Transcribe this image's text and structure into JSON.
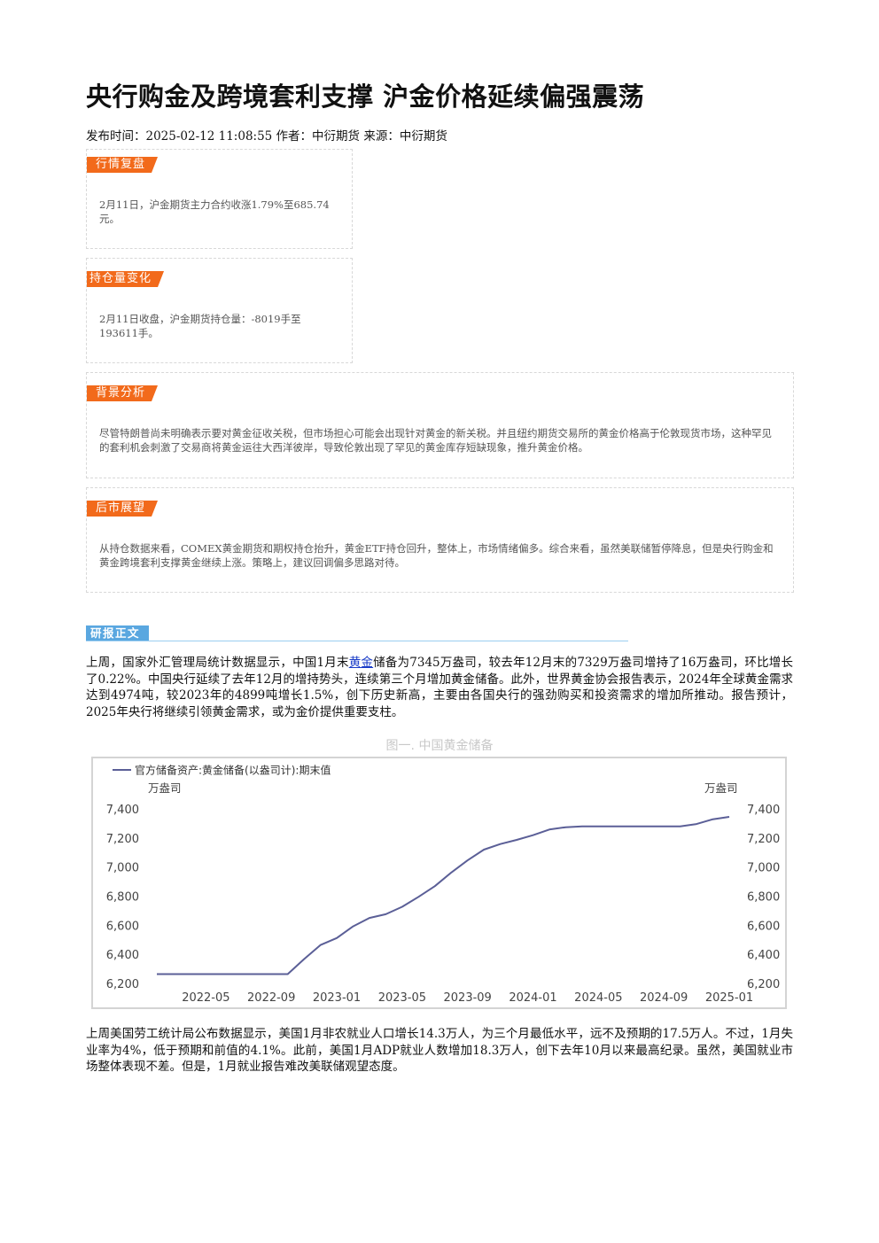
{
  "article": {
    "title": "央行购金及跨境套利支撑 沪金价格延续偏强震荡",
    "meta": "发布时间：2025-02-12 11:08:55 作者：中衍期货 来源：中衍期货"
  },
  "sections": {
    "market_review": {
      "label": "行情复盘",
      "text": "2月11日，沪金期货主力合约收涨1.79%至685.74元。"
    },
    "position_change": {
      "label": "持仓量变化",
      "text": "2月11日收盘，沪金期货持仓量：-8019手至193611手。"
    },
    "background": {
      "label": "背景分析",
      "text": "尽管特朗普尚未明确表示要对黄金征收关税，但市场担心可能会出现针对黄金的新关税。并且纽约期货交易所的黄金价格高于伦敦现货市场，这种罕见的套利机会刺激了交易商将黄金运往大西洋彼岸，导致伦敦出现了罕见的黄金库存短缺现象，推升黄金价格。"
    },
    "outlook": {
      "label": "后市展望",
      "text": "从持仓数据来看，COMEX黄金期货和期权持仓抬升，黄金ETF持仓回升，整体上，市场情绪偏多。综合来看，虽然美联储暂停降息，但是央行购金和黄金跨境套利支撑黄金继续上涨。策略上，建议回调偏多思路对待。"
    }
  },
  "report": {
    "label": "研报正文",
    "para1_a": "上周，国家外汇管理局统计数据显示，中国1月末",
    "para1_link": "黄金",
    "para1_b": "储备为7345万盎司，较去年12月末的7329万盎司增持了16万盎司，环比增长了0.22%。中国央行延续了去年12月的增持势头，连续第三个月增加黄金储备。此外，世界黄金协会报告表示，2024年全球黄金需求达到4974吨，较2023年的4899吨增长1.5%，创下历史新高，主要由各国央行的强劲购买和投资需求的增加所推动。报告预计，2025年央行将继续引领黄金需求，或为金价提供重要支柱。",
    "figure_caption": "图一. 中国黄金储备",
    "para2": "上周美国劳工统计局公布数据显示，美国1月非农就业人口增长14.3万人，为三个月最低水平，远不及预期的17.5万人。不过，1月失业率为4%，低于预期和前值的4.1%。此前，美国1月ADP就业人数增加18.3万人，创下去年10月以来最高纪录。虽然，美国就业市场整体表现不差。但是，1月就业报告难改美联储观望态度。"
  },
  "chart_data": {
    "type": "line",
    "title": "",
    "legend": "官方储备资产:黄金储备(以盎司计):期末值",
    "legend_position": "top-left",
    "ylabel_left": "万盎司",
    "ylabel_right": "万盎司",
    "ylim": [
      6200,
      7400
    ],
    "yticks": [
      "7,400",
      "7,200",
      "7,000",
      "6,800",
      "6,600",
      "6,400",
      "6,200"
    ],
    "xticks": [
      "2022-05",
      "2022-09",
      "2023-01",
      "2023-05",
      "2023-09",
      "2024-01",
      "2024-05",
      "2024-09",
      "2025-01"
    ],
    "color": "#5b5f97",
    "series": [
      {
        "name": "官方储备资产:黄金储备(以盎司计):期末值",
        "x": [
          "2022-02",
          "2022-03",
          "2022-04",
          "2022-05",
          "2022-06",
          "2022-07",
          "2022-08",
          "2022-09",
          "2022-10",
          "2022-11",
          "2022-12",
          "2023-01",
          "2023-02",
          "2023-03",
          "2023-04",
          "2023-05",
          "2023-06",
          "2023-07",
          "2023-08",
          "2023-09",
          "2023-10",
          "2023-11",
          "2023-12",
          "2024-01",
          "2024-02",
          "2024-03",
          "2024-04",
          "2024-05",
          "2024-06",
          "2024-07",
          "2024-08",
          "2024-09",
          "2024-10",
          "2024-11",
          "2024-12",
          "2025-01"
        ],
        "values": [
          6264,
          6264,
          6264,
          6264,
          6264,
          6264,
          6264,
          6264,
          6264,
          6367,
          6464,
          6512,
          6592,
          6650,
          6676,
          6727,
          6795,
          6869,
          6962,
          7046,
          7120,
          7158,
          7187,
          7219,
          7258,
          7274,
          7280,
          7280,
          7280,
          7280,
          7280,
          7280,
          7280,
          7296,
          7329,
          7345
        ]
      }
    ]
  }
}
